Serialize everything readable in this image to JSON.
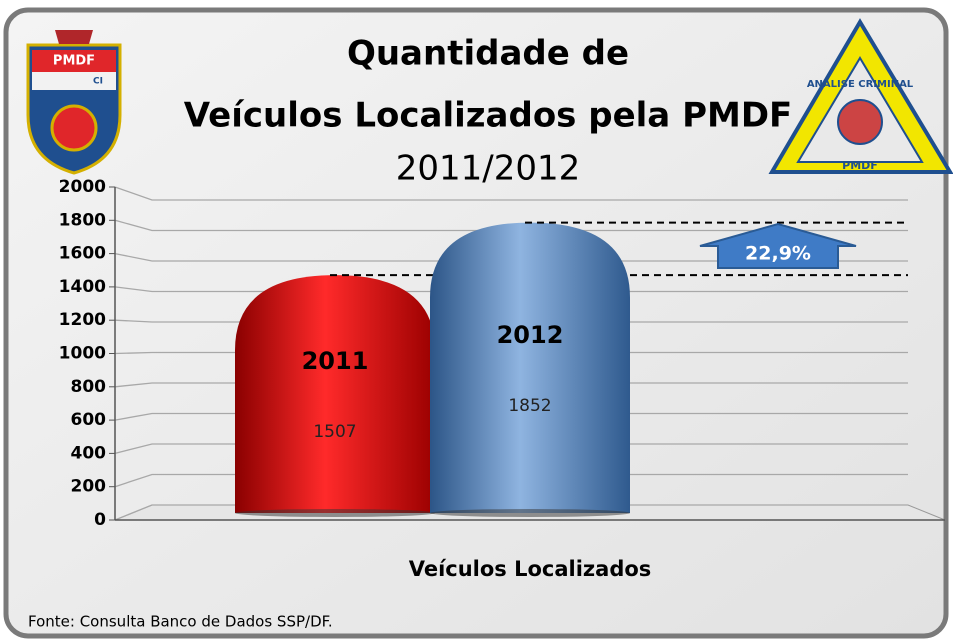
{
  "chart_data": {
    "type": "bar",
    "title": "Quantidade de",
    "title_line2": "Veículos Localizados pela PMDF",
    "subtitle": "2011/2012",
    "categories": [
      "2011",
      "2012"
    ],
    "values": [
      1507,
      1852
    ],
    "colors": [
      "#e00000",
      "#4a7fbe"
    ],
    "xlabel": "Veículos Localizados",
    "ylim": [
      0,
      2000
    ],
    "yticks": [
      0,
      200,
      400,
      600,
      800,
      1000,
      1200,
      1400,
      1600,
      1800,
      2000
    ],
    "grid": true,
    "annotation": "22,9%",
    "source": "Fonte: Consulta Banco de Dados SSP/DF."
  },
  "logos": {
    "left": [
      "PMDF",
      "CI"
    ],
    "right": [
      "ANALISE CRIMINAL",
      "PMDF"
    ]
  }
}
